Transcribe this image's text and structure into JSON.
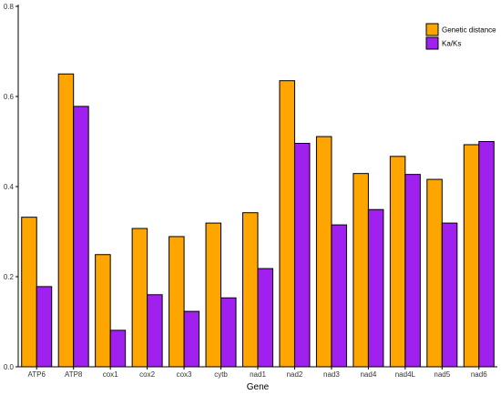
{
  "chart_data": {
    "type": "bar",
    "title": "",
    "xlabel": "Gene",
    "ylabel": "",
    "ylim": [
      0,
      0.8
    ],
    "yticks": [
      "0.0",
      "0.2",
      "0.4",
      "0.6",
      "0.8"
    ],
    "grid": false,
    "legend_position": "top-right",
    "categories": [
      "ATP6",
      "ATP8",
      "cox1",
      "cox2",
      "cox3",
      "cytb",
      "nad1",
      "nad2",
      "nad3",
      "nad4",
      "nad4L",
      "nad5",
      "nad6"
    ],
    "series": [
      {
        "name": "Genetic distance",
        "color": "#FFA500",
        "values": [
          0.332,
          0.65,
          0.249,
          0.307,
          0.289,
          0.319,
          0.342,
          0.635,
          0.511,
          0.429,
          0.467,
          0.416,
          0.493
        ]
      },
      {
        "name": "Ka/Ks",
        "color": "#A020F0",
        "values": [
          0.178,
          0.578,
          0.081,
          0.16,
          0.123,
          0.153,
          0.218,
          0.496,
          0.315,
          0.349,
          0.427,
          0.319,
          0.5
        ]
      }
    ]
  }
}
